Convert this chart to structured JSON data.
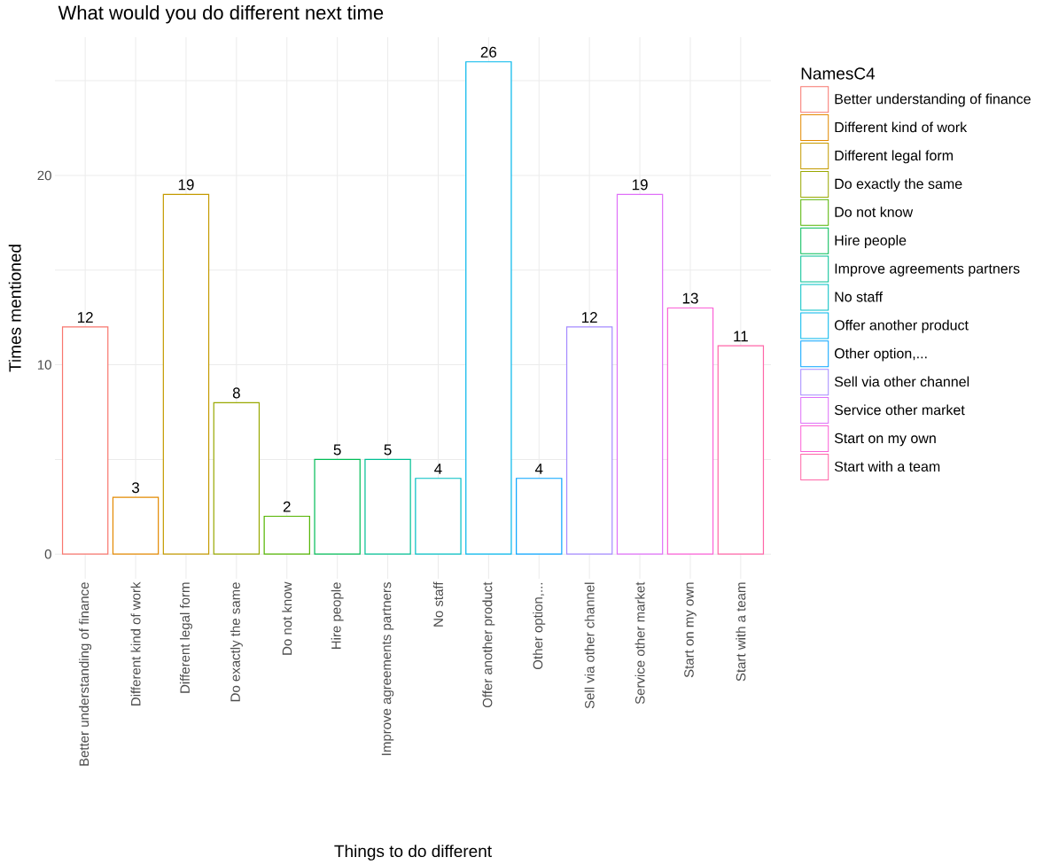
{
  "chart_data": {
    "type": "bar",
    "title": "What would you do different next time",
    "xlabel": "Things to do different",
    "ylabel": "Times mentioned",
    "legend_title": "NamesC4",
    "categories": [
      "Better understanding of finance",
      "Different kind of work",
      "Different legal form",
      "Do exactly the same",
      "Do not know",
      "Hire people",
      "Improve agreements partners",
      "No staff",
      "Offer another product",
      "Other option,...",
      "Sell via other channel",
      "Service other market",
      "Start on my own",
      "Start with a team"
    ],
    "series": [
      {
        "name": "Better understanding of finance",
        "color": "#F8766D",
        "values": [
          12,
          null,
          null,
          null,
          null,
          null,
          null,
          null,
          null,
          null,
          null,
          null,
          null,
          null
        ]
      },
      {
        "name": "Different kind of work",
        "color": "#E38900",
        "values": [
          null,
          3,
          null,
          null,
          null,
          null,
          null,
          null,
          null,
          null,
          null,
          null,
          null,
          null
        ]
      },
      {
        "name": "Different legal form",
        "color": "#C49A00",
        "values": [
          null,
          null,
          19,
          null,
          null,
          null,
          null,
          null,
          null,
          null,
          null,
          null,
          null,
          null
        ]
      },
      {
        "name": "Do exactly the same",
        "color": "#99A800",
        "values": [
          null,
          null,
          null,
          8,
          null,
          null,
          null,
          null,
          null,
          null,
          null,
          null,
          null,
          null
        ]
      },
      {
        "name": "Do not know",
        "color": "#53B400",
        "values": [
          null,
          null,
          null,
          null,
          2,
          null,
          null,
          null,
          null,
          null,
          null,
          null,
          null,
          null
        ]
      },
      {
        "name": "Hire people",
        "color": "#00BC56",
        "values": [
          null,
          null,
          null,
          null,
          null,
          5,
          null,
          null,
          null,
          null,
          null,
          null,
          null,
          null
        ]
      },
      {
        "name": "Improve agreements partners",
        "color": "#00C094",
        "values": [
          null,
          null,
          null,
          null,
          null,
          null,
          5,
          null,
          null,
          null,
          null,
          null,
          null,
          null
        ]
      },
      {
        "name": "No staff",
        "color": "#00BFC4",
        "values": [
          null,
          null,
          null,
          null,
          null,
          null,
          null,
          4,
          null,
          null,
          null,
          null,
          null,
          null
        ]
      },
      {
        "name": "Offer another product",
        "color": "#00B6EB",
        "values": [
          null,
          null,
          null,
          null,
          null,
          null,
          null,
          null,
          26,
          null,
          null,
          null,
          null,
          null
        ]
      },
      {
        "name": "Other option,...",
        "color": "#06A4FF",
        "values": [
          null,
          null,
          null,
          null,
          null,
          null,
          null,
          null,
          null,
          4,
          null,
          null,
          null,
          null
        ]
      },
      {
        "name": "Sell via other channel",
        "color": "#A58AFF",
        "values": [
          null,
          null,
          null,
          null,
          null,
          null,
          null,
          null,
          null,
          null,
          12,
          null,
          null,
          null
        ]
      },
      {
        "name": "Service other market",
        "color": "#DF70F8",
        "values": [
          null,
          null,
          null,
          null,
          null,
          null,
          null,
          null,
          null,
          null,
          null,
          19,
          null,
          null
        ]
      },
      {
        "name": "Start on my own",
        "color": "#FB61D7",
        "values": [
          null,
          null,
          null,
          null,
          null,
          null,
          null,
          null,
          null,
          null,
          null,
          null,
          13,
          null
        ]
      },
      {
        "name": "Start with a team",
        "color": "#FF66A8",
        "values": [
          null,
          null,
          null,
          null,
          null,
          null,
          null,
          null,
          null,
          null,
          null,
          null,
          null,
          11
        ]
      }
    ],
    "ylim": [
      -1.3,
      27.3
    ],
    "yticks": [
      0,
      {
        "value": 5,
        "label": null
      },
      10,
      {
        "value": 15,
        "label": null
      },
      20,
      {
        "value": 25,
        "label": null
      }
    ],
    "grid": true,
    "legend": "right",
    "data_labels": true
  }
}
